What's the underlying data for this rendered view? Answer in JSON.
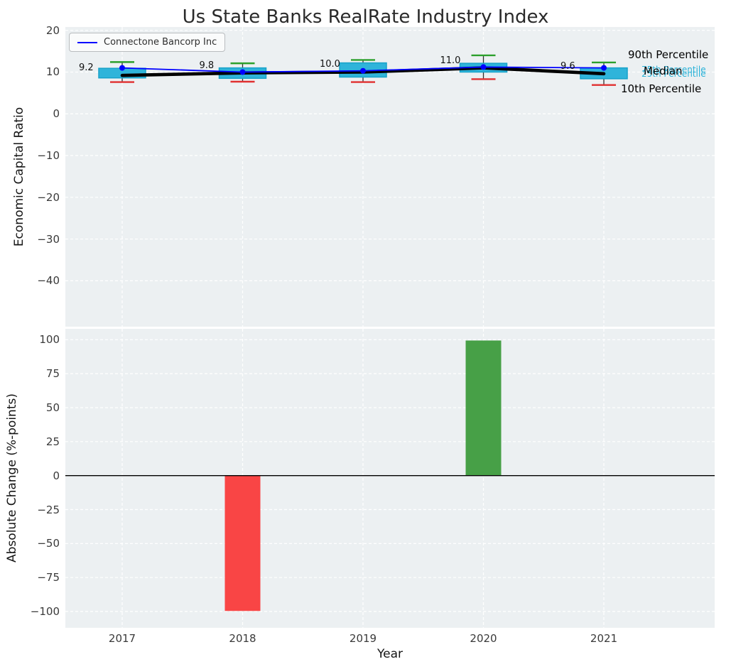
{
  "figure": {
    "title": "Us State Banks RealRate Industry Index",
    "background": "#ffffff",
    "panel_background": "#ecf0f2",
    "grid_color": "#ffffff"
  },
  "chart_data": [
    {
      "type": "box",
      "panel": "top",
      "ylabel": "Economic Capital Ratio",
      "categories": [
        "2017",
        "2018",
        "2019",
        "2020",
        "2021"
      ],
      "ylim": [
        -51,
        20.8
      ],
      "yticks": [
        20,
        10,
        0,
        -10,
        -20,
        -30,
        -40
      ],
      "ytick_labels": [
        "20",
        "10",
        "0",
        "−10",
        "−20",
        "−30",
        "−40"
      ],
      "boxes": [
        {
          "year": "2017",
          "p10": 7.6,
          "q1": 8.6,
          "median": 9.2,
          "q3": 10.9,
          "p90": 12.4
        },
        {
          "year": "2018",
          "p10": 7.7,
          "q1": 8.5,
          "median": 9.8,
          "q3": 11.0,
          "p90": 12.1
        },
        {
          "year": "2019",
          "p10": 7.6,
          "q1": 8.8,
          "median": 10.0,
          "q3": 12.2,
          "p90": 12.9
        },
        {
          "year": "2020",
          "p10": 8.3,
          "q1": 10.0,
          "median": 11.0,
          "q3": 12.1,
          "p90": 14.0
        },
        {
          "year": "2021",
          "p10": 6.9,
          "q1": 8.4,
          "median": 9.6,
          "q3": 11.0,
          "p90": 12.3
        }
      ],
      "median_labels": [
        "9.2",
        "9.8",
        "10.0",
        "11.0",
        "9.6"
      ],
      "series": [
        {
          "name": "Connectone Bancorp Inc",
          "color": "#0000ff",
          "values": [
            11.0,
            10.0,
            10.3,
            11.2,
            11.0
          ]
        }
      ],
      "legend": {
        "label": "Connectone Bancorp Inc",
        "position": "upper left"
      },
      "annotations": [
        {
          "text": "75th Percentile",
          "color": "#29b2d8"
        },
        {
          "text": "25th Percentile",
          "color": "#29b2d8"
        },
        {
          "text": "90th Percentile",
          "color": "#000000"
        },
        {
          "text": "Median",
          "color": "#000000"
        },
        {
          "text": "10th Percentile",
          "color": "#000000"
        }
      ],
      "colors": {
        "box_fill": "#2fb4da",
        "box_edge": "#17a2c9",
        "p90_cap": "#2ca02c",
        "p10_cap": "#e03030",
        "median_line": "#000000",
        "company_line": "#0000ff"
      },
      "grid": true
    },
    {
      "type": "bar",
      "panel": "bottom",
      "ylabel": "Absolute Change (%-points)",
      "xlabel": "Year",
      "categories": [
        "2017",
        "2018",
        "2019",
        "2020",
        "2021"
      ],
      "values": [
        0,
        -99.6,
        0,
        99.4,
        0
      ],
      "ylim": [
        -112,
        108
      ],
      "yticks": [
        100,
        75,
        50,
        25,
        0,
        -25,
        -50,
        -75,
        -100
      ],
      "ytick_labels": [
        "100",
        "75",
        "50",
        "25",
        "0",
        "−25",
        "−50",
        "−75",
        "−100"
      ],
      "colors": {
        "positive": "#47a047",
        "negative": "#f94545",
        "zero_line": "#000000"
      },
      "grid": true
    }
  ]
}
